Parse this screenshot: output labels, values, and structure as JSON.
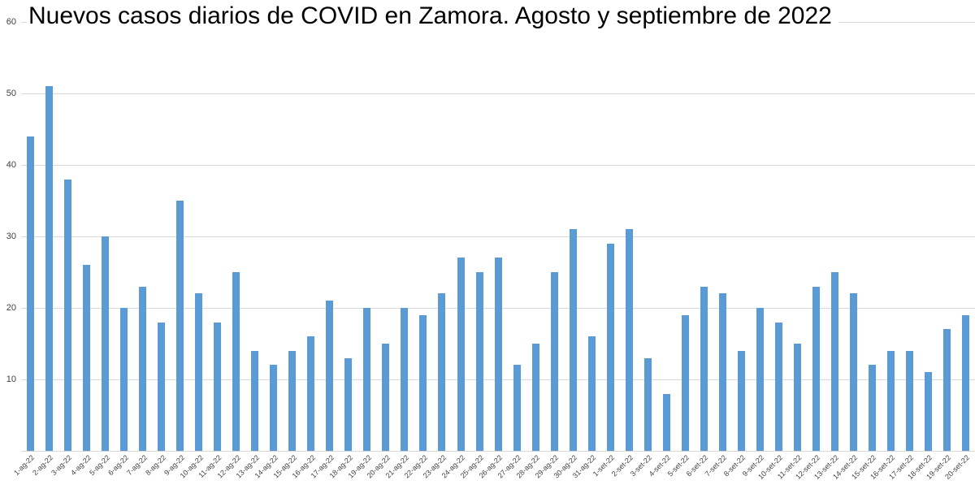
{
  "chart_data": {
    "type": "bar",
    "title": "Nuevos casos diarios de COVID en Zamora. Agosto y septiembre de 2022",
    "xlabel": "",
    "ylabel": "",
    "ylim": [
      0,
      60
    ],
    "yticks": [
      10,
      20,
      30,
      40,
      50,
      60
    ],
    "grid": true,
    "legend": "none",
    "categories": [
      "1-ag-22",
      "2-ag-22",
      "3-ag-22",
      "4-ag-22",
      "5-ag-22",
      "6-ag-22",
      "7-ag-22",
      "8-ag-22",
      "9-ag-22",
      "10-ag-22",
      "11-ag-22",
      "12-ag-22",
      "13-ag-22",
      "14-ag-22",
      "15-ag-22",
      "16-ag-22",
      "17-ag-22",
      "18-ag-22",
      "19-ag-22",
      "20-ag-22",
      "21-ag-22",
      "22-ag-22",
      "23-ag-22",
      "24-ag-22",
      "25-ag-22",
      "26-ag-22",
      "27-ag-22",
      "28-ag-22",
      "29-ag-22",
      "30-ag-22",
      "31-ag-22",
      "1-set-22",
      "2-set-22",
      "3-set-22",
      "4-set-22",
      "5-set-22",
      "6-set-22",
      "7-set-22",
      "8-set-22",
      "9-set-22",
      "10-set-22",
      "11-set-22",
      "12-set-22",
      "13-set-22",
      "14-set-22",
      "15-set-22",
      "16-set-22",
      "17-set-22",
      "18-set-22",
      "19-set-22",
      "20-set-22"
    ],
    "values": [
      44,
      51,
      38,
      26,
      30,
      20,
      23,
      18,
      35,
      22,
      18,
      25,
      14,
      12,
      14,
      16,
      21,
      13,
      20,
      15,
      20,
      19,
      22,
      27,
      25,
      27,
      12,
      15,
      25,
      31,
      16,
      29,
      31,
      13,
      8,
      19,
      23,
      22,
      14,
      20,
      18,
      15,
      23,
      25,
      22,
      12,
      14,
      14,
      11,
      17,
      19
    ],
    "colors": {
      "bar": "#5B9BD5",
      "gridline": "#D9D9D9",
      "axis_text": "#404040",
      "title_text": "#000000",
      "background": "#FFFFFF"
    }
  }
}
